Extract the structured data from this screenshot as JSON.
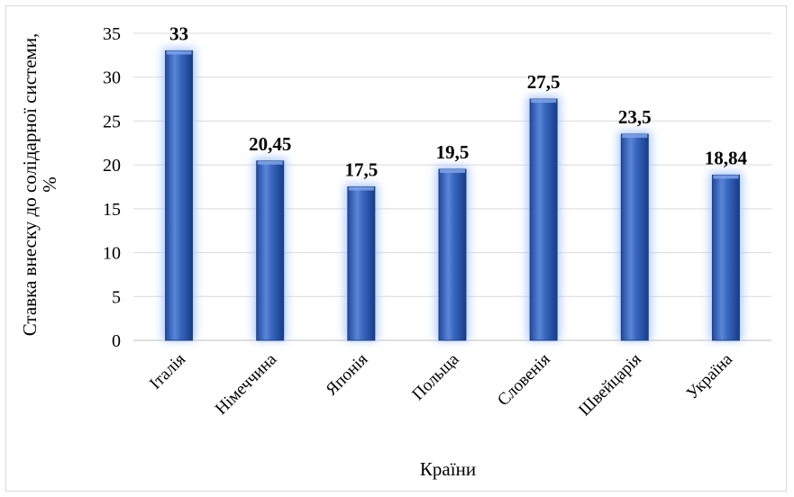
{
  "chart_data": {
    "type": "bar",
    "title": "",
    "xlabel": "Країни",
    "ylabel_lines": [
      "Ставка внеску до солідарної системи,",
      "%"
    ],
    "categories": [
      "Італія",
      "Німеччина",
      "Японія",
      "Польща",
      "Словенія",
      "Швейцарія",
      "Україна"
    ],
    "values": [
      33,
      20.45,
      17.5,
      19.5,
      27.5,
      23.5,
      18.84
    ],
    "data_labels": [
      "33",
      "20,45",
      "17,5",
      "19,5",
      "27,5",
      "23,5",
      "18,84"
    ],
    "yticks": [
      0,
      5,
      10,
      15,
      20,
      25,
      30,
      35
    ],
    "ylim": [
      0,
      35
    ],
    "grid": true,
    "legend": "none",
    "bar_color": "#2e5fb8",
    "bar_edge_color": "#1f3f86",
    "bar_glow_color": "#9fc0ff",
    "grid_color": "#d9d9d9"
  }
}
